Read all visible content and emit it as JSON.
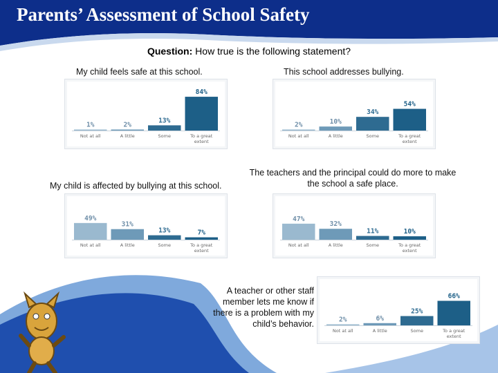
{
  "title": "Parents’ Assessment of School Safety",
  "question": {
    "prefix": "Question:",
    "text": " How true is the following statement?"
  },
  "labels": {
    "c1": "My child feels safe at this school.",
    "c2": "This school addresses bullying.",
    "c3": "My child is affected by bullying at this school.",
    "c4": "The teachers and the principal could do more to make the school a safe place.",
    "c5": "A teacher or other staff member lets me know if there is a problem with my child’s behavior."
  },
  "colors": {
    "banner": "#0d2e8a",
    "swoosh": "#5f92cf",
    "bar_light": "#9ab9cf",
    "bar_mid": "#6e9ab8",
    "bar_dark": "#2e6b91",
    "bar_darkest": "#1d5f87",
    "val_light": "#6e8ea8"
  },
  "chart_data": [
    {
      "id": "c1",
      "type": "bar",
      "title": "My child feels safe at this school.",
      "categories": [
        "Not at all",
        "A little",
        "Some",
        "To a great extent"
      ],
      "values": [
        1,
        2,
        13,
        84
      ],
      "labels": [
        "1%",
        "2%",
        "13%",
        "84%"
      ],
      "ylim": [
        0,
        100
      ]
    },
    {
      "id": "c2",
      "type": "bar",
      "title": "This school addresses bullying.",
      "categories": [
        "Not at all",
        "A little",
        "Some",
        "To a great extent"
      ],
      "values": [
        2,
        10,
        34,
        54
      ],
      "labels": [
        "2%",
        "10%",
        "34%",
        "54%"
      ],
      "ylim": [
        0,
        100
      ]
    },
    {
      "id": "c3",
      "type": "bar",
      "title": "My child is affected by bullying at this school.",
      "categories": [
        "Not at all",
        "A little",
        "Some",
        "To a great extent"
      ],
      "values": [
        49,
        31,
        13,
        7
      ],
      "labels": [
        "49%",
        "31%",
        "13%",
        "7%"
      ],
      "ylim": [
        0,
        100
      ]
    },
    {
      "id": "c4",
      "type": "bar",
      "title": "The teachers and the principal could do more to make the school a safe place.",
      "categories": [
        "Not at all",
        "A little",
        "Some",
        "To a great extent"
      ],
      "values": [
        47,
        32,
        11,
        10
      ],
      "labels": [
        "47%",
        "32%",
        "11%",
        "10%"
      ],
      "ylim": [
        0,
        100
      ]
    },
    {
      "id": "c5",
      "type": "bar",
      "title": "A teacher or other staff member lets me know if there is a problem with my child’s behavior.",
      "categories": [
        "Not at all",
        "A little",
        "Some",
        "To a great extent"
      ],
      "values": [
        2,
        6,
        25,
        66
      ],
      "labels": [
        "2%",
        "6%",
        "25%",
        "66%"
      ],
      "ylim": [
        0,
        100
      ]
    }
  ]
}
